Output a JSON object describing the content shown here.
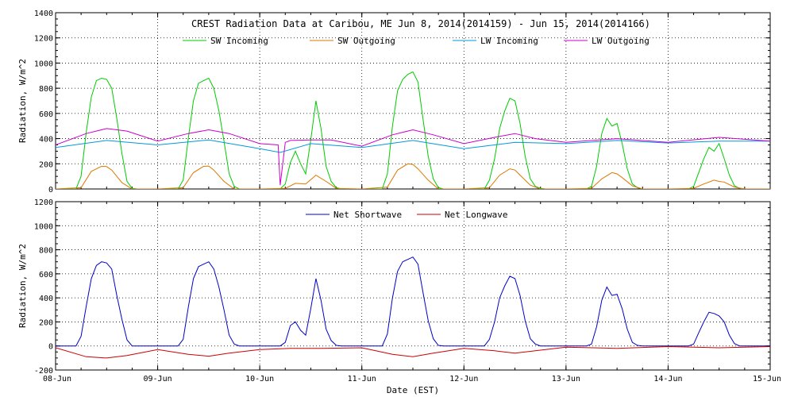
{
  "figure": {
    "title": "CREST Radiation Data at Caribou, ME   Jun  8, 2014(2014159) - Jun 15, 2014(2014166)",
    "xlabel": "Date (EST)"
  },
  "chart_data": [
    {
      "type": "line",
      "title": "CREST Radiation Data at Caribou, ME   Jun  8, 2014(2014159) - Jun 15, 2014(2014166)",
      "xlabel": "",
      "ylabel": "Radiation, W/m^2",
      "xlim": [
        0,
        7
      ],
      "ylim": [
        0,
        1400
      ],
      "yticks": [
        0,
        200,
        400,
        600,
        800,
        1000,
        1200,
        1400
      ],
      "xticks": [
        "08-Jun",
        "09-Jun",
        "10-Jun",
        "11-Jun",
        "12-Jun",
        "13-Jun",
        "14-Jun",
        "15-Jun"
      ],
      "grid": true,
      "legend_position": "top",
      "series": [
        {
          "name": "SW Incoming",
          "color": "#00cc00",
          "x": [
            0,
            0.2,
            0.25,
            0.3,
            0.35,
            0.4,
            0.45,
            0.5,
            0.55,
            0.6,
            0.65,
            0.7,
            0.75,
            0.8,
            0.9,
            1.0,
            1.2,
            1.25,
            1.3,
            1.35,
            1.4,
            1.45,
            1.5,
            1.55,
            1.6,
            1.65,
            1.7,
            1.75,
            1.8,
            1.9,
            2.0,
            2.2,
            2.25,
            2.3,
            2.35,
            2.4,
            2.45,
            2.5,
            2.55,
            2.6,
            2.65,
            2.7,
            2.75,
            2.8,
            2.9,
            3.0,
            3.2,
            3.25,
            3.3,
            3.35,
            3.4,
            3.45,
            3.5,
            3.55,
            3.6,
            3.65,
            3.7,
            3.75,
            3.8,
            3.9,
            4.0,
            4.2,
            4.25,
            4.3,
            4.35,
            4.4,
            4.45,
            4.5,
            4.55,
            4.6,
            4.65,
            4.7,
            4.75,
            4.8,
            4.9,
            5.0,
            5.2,
            5.25,
            5.3,
            5.35,
            5.4,
            5.45,
            5.5,
            5.55,
            5.6,
            5.65,
            5.7,
            5.75,
            5.8,
            5.9,
            6.0,
            6.2,
            6.25,
            6.3,
            6.35,
            6.4,
            6.45,
            6.5,
            6.55,
            6.6,
            6.65,
            6.7,
            6.75,
            6.8,
            6.9,
            7.0
          ],
          "values": [
            0,
            0,
            100,
            450,
            730,
            860,
            880,
            870,
            800,
            560,
            280,
            60,
            5,
            0,
            0,
            0,
            0,
            70,
            400,
            700,
            840,
            860,
            880,
            800,
            620,
            380,
            120,
            20,
            0,
            0,
            0,
            0,
            40,
            210,
            300,
            200,
            120,
            390,
            700,
            480,
            180,
            60,
            10,
            0,
            0,
            0,
            0,
            120,
            500,
            780,
            870,
            910,
            930,
            850,
            550,
            260,
            80,
            10,
            0,
            0,
            0,
            0,
            70,
            240,
            480,
            620,
            720,
            700,
            520,
            260,
            80,
            20,
            5,
            0,
            0,
            0,
            0,
            20,
            180,
            440,
            560,
            500,
            520,
            360,
            160,
            40,
            10,
            0,
            0,
            0,
            0,
            0,
            20,
            130,
            240,
            330,
            300,
            360,
            240,
            110,
            25,
            5,
            0,
            0,
            0,
            0
          ]
        },
        {
          "name": "SW Outgoing",
          "color": "#dd7700",
          "x": [
            0,
            0.25,
            0.35,
            0.45,
            0.5,
            0.55,
            0.65,
            0.75,
            1.0,
            1.25,
            1.35,
            1.45,
            1.5,
            1.55,
            1.65,
            1.75,
            2.0,
            2.25,
            2.35,
            2.45,
            2.55,
            2.65,
            2.75,
            3.0,
            3.25,
            3.35,
            3.45,
            3.5,
            3.55,
            3.65,
            3.75,
            4.0,
            4.25,
            4.35,
            4.45,
            4.5,
            4.55,
            4.65,
            4.75,
            5.0,
            5.25,
            5.35,
            5.45,
            5.5,
            5.55,
            5.65,
            5.75,
            6.0,
            6.25,
            6.35,
            6.45,
            6.5,
            6.55,
            6.65,
            6.75,
            7.0
          ],
          "values": [
            0,
            10,
            140,
            180,
            178,
            150,
            50,
            0,
            0,
            10,
            130,
            180,
            182,
            150,
            60,
            0,
            0,
            5,
            45,
            40,
            110,
            60,
            5,
            0,
            15,
            150,
            200,
            195,
            160,
            70,
            0,
            0,
            10,
            110,
            160,
            150,
            110,
            30,
            0,
            0,
            5,
            80,
            130,
            120,
            90,
            25,
            0,
            0,
            5,
            40,
            70,
            60,
            55,
            15,
            0,
            0
          ]
        },
        {
          "name": "LW Incoming",
          "color": "#0099dd",
          "x": [
            0,
            0.5,
            1.0,
            1.5,
            2.0,
            2.2,
            2.5,
            3.0,
            3.5,
            4.0,
            4.5,
            5.0,
            5.5,
            6.0,
            6.5,
            7.0
          ],
          "values": [
            330,
            385,
            350,
            390,
            320,
            290,
            360,
            330,
            385,
            320,
            370,
            360,
            385,
            365,
            380,
            380
          ]
        },
        {
          "name": "LW Outgoing",
          "color": "#cc00cc",
          "x": [
            0,
            0.3,
            0.5,
            0.7,
            1.0,
            1.3,
            1.5,
            1.7,
            2.0,
            2.18,
            2.2,
            2.25,
            2.3,
            2.5,
            2.7,
            3.0,
            3.3,
            3.5,
            3.7,
            4.0,
            4.3,
            4.5,
            4.7,
            5.0,
            5.5,
            6.0,
            6.5,
            7.0
          ],
          "values": [
            350,
            440,
            480,
            460,
            380,
            440,
            470,
            440,
            360,
            350,
            30,
            370,
            385,
            390,
            390,
            340,
            430,
            470,
            430,
            360,
            410,
            440,
            400,
            370,
            400,
            370,
            410,
            380
          ]
        }
      ]
    },
    {
      "type": "line",
      "title": "",
      "xlabel": "Date (EST)",
      "ylabel": "Radiation, W/m^2",
      "xlim": [
        0,
        7
      ],
      "ylim": [
        -200,
        1200
      ],
      "yticks": [
        -200,
        0,
        200,
        400,
        600,
        800,
        1000,
        1200
      ],
      "xticks": [
        "08-Jun",
        "09-Jun",
        "10-Jun",
        "11-Jun",
        "12-Jun",
        "13-Jun",
        "14-Jun",
        "15-Jun"
      ],
      "grid": true,
      "legend_position": "top",
      "series": [
        {
          "name": "Net Shortwave",
          "color": "#0000cc",
          "x": [
            0,
            0.2,
            0.25,
            0.3,
            0.35,
            0.4,
            0.45,
            0.5,
            0.55,
            0.6,
            0.65,
            0.7,
            0.75,
            0.8,
            0.9,
            1.0,
            1.2,
            1.25,
            1.3,
            1.35,
            1.4,
            1.45,
            1.5,
            1.55,
            1.6,
            1.65,
            1.7,
            1.75,
            1.8,
            1.9,
            2.0,
            2.2,
            2.25,
            2.3,
            2.35,
            2.4,
            2.45,
            2.5,
            2.55,
            2.6,
            2.65,
            2.7,
            2.75,
            2.8,
            2.9,
            3.0,
            3.2,
            3.25,
            3.3,
            3.35,
            3.4,
            3.45,
            3.5,
            3.55,
            3.6,
            3.65,
            3.7,
            3.75,
            3.8,
            3.9,
            4.0,
            4.2,
            4.25,
            4.3,
            4.35,
            4.4,
            4.45,
            4.5,
            4.55,
            4.6,
            4.65,
            4.7,
            4.75,
            4.8,
            4.9,
            5.0,
            5.2,
            5.25,
            5.3,
            5.35,
            5.4,
            5.45,
            5.5,
            5.55,
            5.6,
            5.65,
            5.7,
            5.75,
            5.8,
            5.9,
            6.0,
            6.2,
            6.25,
            6.3,
            6.35,
            6.4,
            6.45,
            6.5,
            6.55,
            6.6,
            6.65,
            6.7,
            6.75,
            6.8,
            6.9,
            7.0
          ],
          "values": [
            0,
            0,
            80,
            330,
            560,
            670,
            700,
            690,
            640,
            420,
            220,
            50,
            0,
            0,
            0,
            0,
            0,
            55,
            320,
            560,
            660,
            680,
            700,
            640,
            490,
            300,
            90,
            15,
            0,
            0,
            0,
            0,
            30,
            170,
            200,
            130,
            90,
            310,
            560,
            380,
            140,
            45,
            5,
            0,
            0,
            0,
            0,
            100,
            400,
            620,
            700,
            720,
            740,
            680,
            440,
            210,
            60,
            5,
            0,
            0,
            0,
            0,
            55,
            200,
            400,
            500,
            580,
            560,
            420,
            210,
            60,
            15,
            0,
            0,
            0,
            0,
            0,
            15,
            160,
            380,
            490,
            420,
            430,
            310,
            140,
            30,
            5,
            0,
            0,
            0,
            0,
            0,
            15,
            110,
            200,
            280,
            270,
            250,
            200,
            90,
            20,
            0,
            0,
            0,
            0,
            0
          ]
        },
        {
          "name": "Net Longwave",
          "color": "#cc0000",
          "x": [
            0,
            0.3,
            0.5,
            0.7,
            1.0,
            1.3,
            1.5,
            1.7,
            2.0,
            2.3,
            2.6,
            3.0,
            3.3,
            3.5,
            3.7,
            4.0,
            4.3,
            4.5,
            4.7,
            5.0,
            5.5,
            6.0,
            6.5,
            7.0
          ],
          "values": [
            -15,
            -90,
            -100,
            -80,
            -30,
            -70,
            -85,
            -60,
            -30,
            -20,
            -20,
            -15,
            -70,
            -90,
            -60,
            -20,
            -40,
            -60,
            -40,
            -10,
            -20,
            -5,
            -15,
            -5
          ]
        }
      ]
    }
  ]
}
